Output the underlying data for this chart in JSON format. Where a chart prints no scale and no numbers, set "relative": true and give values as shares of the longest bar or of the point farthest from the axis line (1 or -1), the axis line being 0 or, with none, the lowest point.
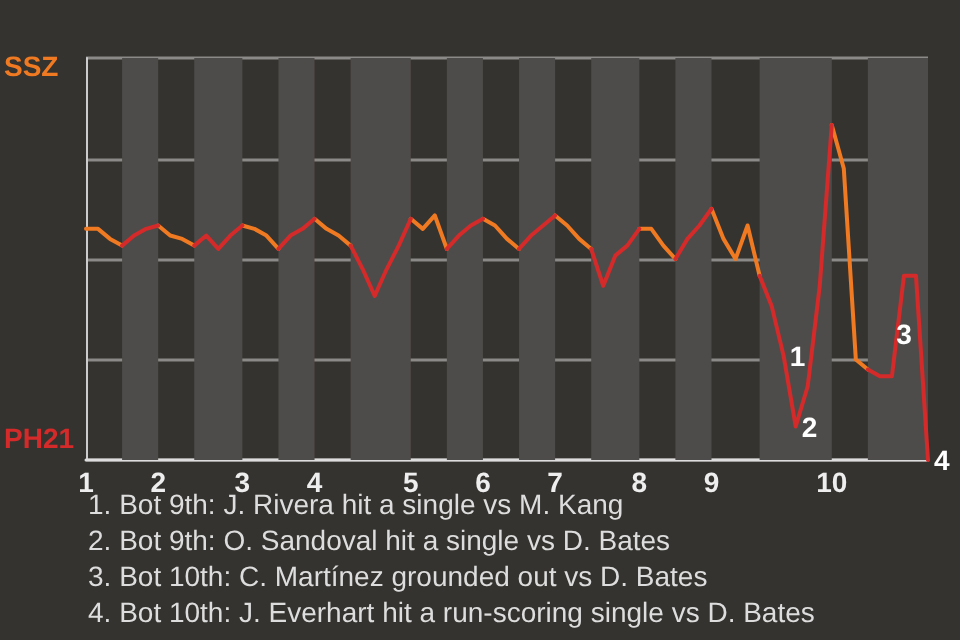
{
  "chart_data": {
    "type": "line",
    "relative": true,
    "categories": [
      "1",
      null,
      null,
      null,
      null,
      null,
      "2",
      null,
      null,
      null,
      null,
      null,
      null,
      "3",
      null,
      null,
      null,
      null,
      null,
      "4",
      null,
      null,
      null,
      null,
      null,
      null,
      null,
      "5",
      null,
      null,
      null,
      null,
      null,
      "6",
      null,
      null,
      null,
      null,
      null,
      "7",
      null,
      null,
      null,
      null,
      null,
      null,
      "8",
      null,
      null,
      null,
      null,
      null,
      "9",
      null,
      null,
      null,
      null,
      null,
      null,
      null,
      null,
      null,
      "10",
      null,
      null,
      null,
      null,
      null,
      null,
      null,
      null
    ],
    "series": [
      {
        "color": "#f07a22",
        "values": [
          0.69,
          0.69,
          0.66,
          0.64,
          null,
          null,
          0.7,
          0.67,
          0.66,
          0.64,
          null,
          null,
          null,
          0.7,
          0.69,
          0.67,
          0.63,
          null,
          null,
          0.72,
          0.69,
          0.67,
          0.64,
          null,
          null,
          null,
          null,
          0.72,
          0.69,
          0.73,
          0.63,
          null,
          null,
          0.72,
          0.7,
          0.66,
          0.63,
          null,
          null,
          0.73,
          0.7,
          0.66,
          0.63,
          null,
          null,
          null,
          0.69,
          0.69,
          0.64,
          0.6,
          null,
          null,
          0.75,
          0.66,
          0.6,
          0.7,
          0.55,
          null,
          null,
          null,
          null,
          null,
          1,
          0.87,
          0.3,
          0.27,
          null,
          null,
          null,
          null,
          null
        ]
      },
      {
        "color": "#d42a2a",
        "values": [
          null,
          null,
          null,
          0.64,
          0.67,
          0.69,
          0.7,
          null,
          null,
          0.64,
          0.67,
          0.63,
          0.67,
          0.7,
          null,
          null,
          0.63,
          0.67,
          0.69,
          0.72,
          null,
          null,
          0.64,
          0.57,
          0.49,
          0.57,
          0.64,
          0.72,
          null,
          null,
          0.63,
          0.67,
          0.7,
          0.72,
          null,
          null,
          0.63,
          0.67,
          0.7,
          0.73,
          null,
          null,
          0.63,
          0.52,
          0.61,
          0.64,
          0.69,
          null,
          null,
          0.6,
          0.66,
          0.7,
          0.75,
          null,
          null,
          null,
          0.55,
          0.46,
          0.31,
          0.1,
          0.22,
          0.52,
          1,
          null,
          null,
          0.27,
          0.25,
          0.25,
          0.55,
          0.55,
          0
        ]
      }
    ],
    "grid": "y",
    "marker": "none",
    "line_style": "solid",
    "annotations": [
      "SSZ",
      "PH21",
      "1",
      "2",
      "3",
      "4",
      "1. Bot 9th: J. Rivera hit a single vs M. Kang",
      "2. Bot 9th: O. Sandoval hit a single vs D. Bates",
      "3. Bot 10th: C. Martínez grounded out vs D. Bates",
      "4. Bot 10th: J. Everhart hit a run-scoring single vs D. Bates"
    ]
  }
}
